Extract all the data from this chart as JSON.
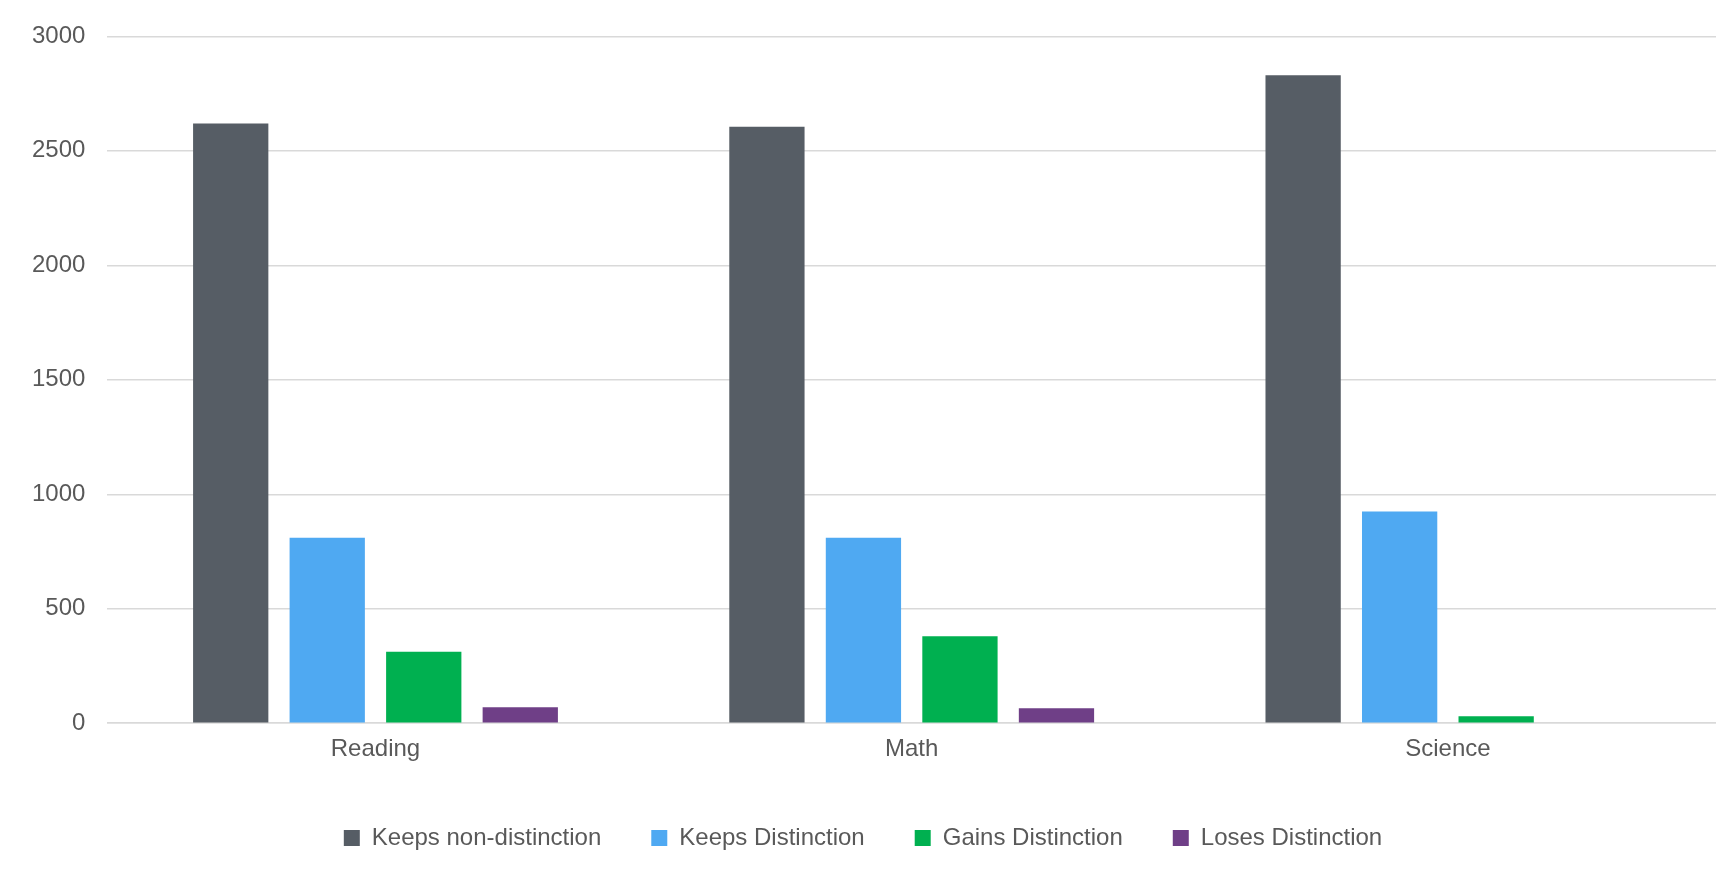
{
  "chart_data": {
    "type": "bar",
    "categories": [
      "Reading",
      "Math",
      "Science"
    ],
    "series": [
      {
        "name": "Keeps non-distinction",
        "color": "#565d65",
        "values": [
          2620,
          2605,
          2830
        ]
      },
      {
        "name": "Keeps Distinction",
        "color": "#4fa9f2",
        "values": [
          810,
          810,
          925
        ]
      },
      {
        "name": "Gains Distinction",
        "color": "#00b050",
        "values": [
          312,
          380,
          30
        ]
      },
      {
        "name": "Loses Distinction",
        "color": "#6f3f87",
        "values": [
          70,
          65,
          0
        ]
      }
    ],
    "ylim": [
      0,
      3000
    ],
    "yticks": [
      0,
      500,
      1000,
      1500,
      2000,
      2500,
      3000
    ],
    "grid": "y",
    "legend": "bottom"
  }
}
